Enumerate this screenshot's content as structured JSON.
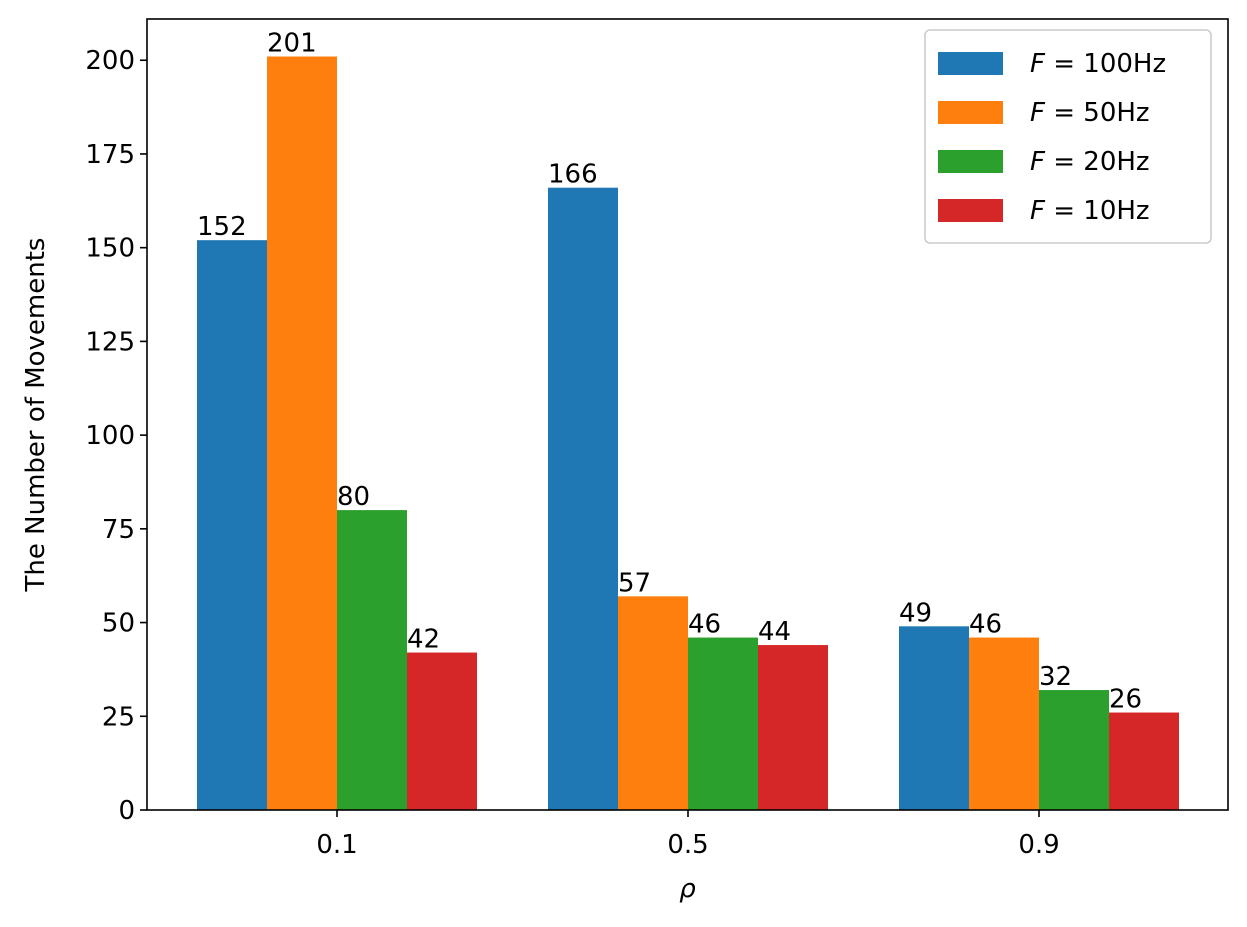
{
  "chart_data": {
    "type": "bar",
    "xlabel": "ρ",
    "ylabel": "The Number of Movements",
    "categories": [
      "0.1",
      "0.5",
      "0.9"
    ],
    "ylim": [
      0,
      211
    ],
    "yticks": [
      0,
      25,
      50,
      75,
      100,
      125,
      150,
      175,
      200
    ],
    "grid": false,
    "legend_position": "top-right",
    "series": [
      {
        "name": "F = 100Hz",
        "name_var": "F",
        "name_value": "100Hz",
        "color": "#1f77b4",
        "values": [
          152,
          166,
          49
        ]
      },
      {
        "name": "F = 50Hz",
        "name_var": "F",
        "name_value": "50Hz",
        "color": "#ff7f0e",
        "values": [
          201,
          57,
          46
        ]
      },
      {
        "name": "F = 20Hz",
        "name_var": "F",
        "name_value": "20Hz",
        "color": "#2ca02c",
        "values": [
          80,
          46,
          32
        ]
      },
      {
        "name": "F = 10Hz",
        "name_var": "F",
        "name_value": "10Hz",
        "color": "#d62728",
        "values": [
          42,
          44,
          26
        ]
      }
    ]
  }
}
